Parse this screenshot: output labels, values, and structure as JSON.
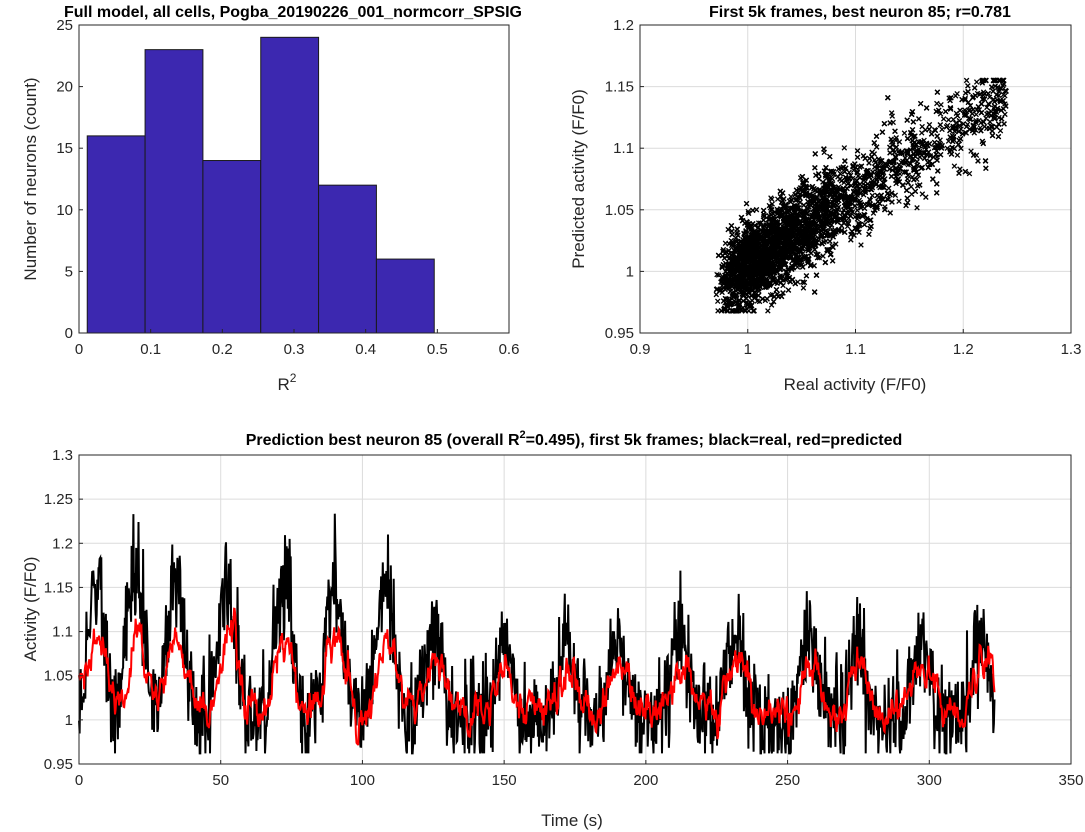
{
  "chart_data": [
    {
      "type": "bar",
      "title": "Full model, all cells, Pogba_20190226_001_normcorr_SPSIG",
      "xlabel": "R",
      "xlabel_sup": "2",
      "ylabel": "Number of neurons (count)",
      "xlim": [
        0,
        0.6
      ],
      "ylim": [
        0,
        25
      ],
      "xticks": [
        "0",
        "0.1",
        "0.2",
        "0.3",
        "0.4",
        "0.5",
        "0.6"
      ],
      "yticks": [
        "0",
        "5",
        "10",
        "15",
        "20",
        "25"
      ],
      "bin_edges": [
        0.0115,
        0.0922,
        0.1729,
        0.2536,
        0.3343,
        0.415,
        0.4957
      ],
      "values": [
        16,
        23,
        14,
        24,
        12,
        6
      ],
      "bar_color": "#3c28b0",
      "grid": false
    },
    {
      "type": "scatter",
      "title": "First 5k frames, best neuron 85; r=0.781",
      "xlabel": "Real activity (F/F0)",
      "ylabel": "Predicted activity (F/F0)",
      "xlim": [
        0.9,
        1.3
      ],
      "ylim": [
        0.95,
        1.2
      ],
      "xticks": [
        "0.9",
        "1",
        "1.1",
        "1.2",
        "1.3"
      ],
      "yticks": [
        "0.95",
        "1",
        "1.05",
        "1.1",
        "1.15",
        "1.2"
      ],
      "n_points": 5000,
      "marker": "x",
      "marker_color": "#000000",
      "r": 0.781,
      "grid": true
    },
    {
      "type": "line",
      "title_pre": "Prediction best neuron 85 (overall R",
      "title_sup": "2",
      "title_post": "=0.495), first 5k frames; black=real, red=predicted",
      "xlabel": "Time (s)",
      "ylabel": "Activity (F/F0)",
      "xlim": [
        0,
        350
      ],
      "ylim": [
        0.95,
        1.3
      ],
      "xticks": [
        "0",
        "50",
        "100",
        "150",
        "200",
        "250",
        "300",
        "350"
      ],
      "yticks": [
        "0.95",
        "1",
        "1.05",
        "1.1",
        "1.15",
        "1.2",
        "1.25",
        "1.3"
      ],
      "series": [
        {
          "color": "#000000",
          "duration_s": 323
        },
        {
          "color": "#ff0000",
          "duration_s": 323
        }
      ],
      "burst_times_s": [
        6,
        20,
        34,
        52,
        72,
        90,
        108,
        125,
        150,
        172,
        190,
        212,
        232,
        258,
        275,
        297,
        318
      ],
      "grid": true
    }
  ]
}
